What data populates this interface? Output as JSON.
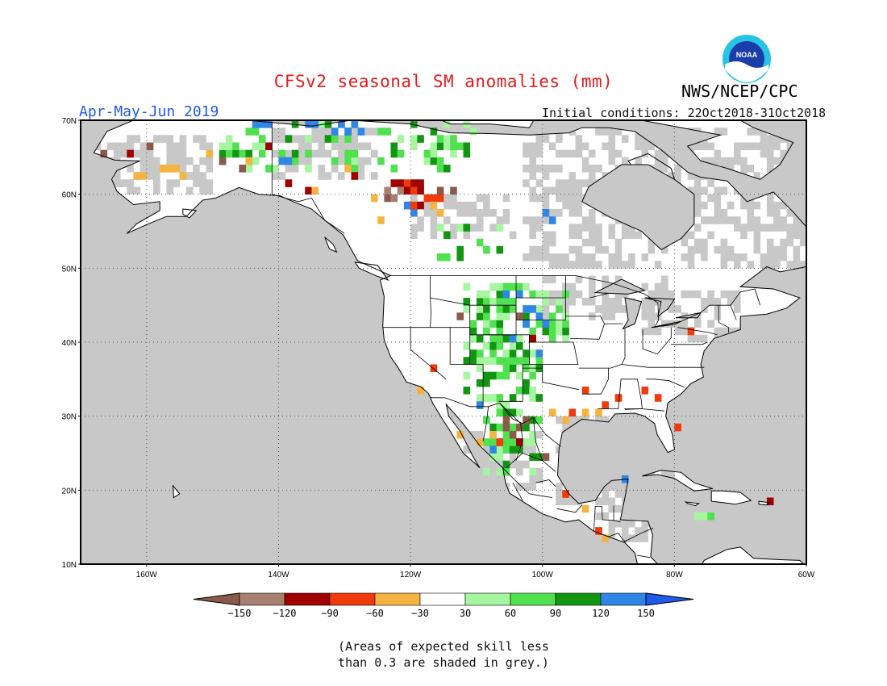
{
  "header": {
    "title": "CFSv2 seasonal SM anomalies (mm)",
    "agency": "NWS/NCEP/CPC",
    "logo_text": "NOAA",
    "period": "Apr-May-Jun 2019",
    "initial_conditions": "Initial conditions: 22Oct2018-31Oct2018"
  },
  "map": {
    "projection": "lat-lon",
    "lon_range": [
      -170,
      -60
    ],
    "lat_range": [
      10,
      70
    ],
    "grid": "dotted",
    "lat_ticks": [
      {
        "value": 70,
        "label": "70N"
      },
      {
        "value": 60,
        "label": "60N"
      },
      {
        "value": 50,
        "label": "50N"
      },
      {
        "value": 40,
        "label": "40N"
      },
      {
        "value": 30,
        "label": "30N"
      },
      {
        "value": 20,
        "label": "20N"
      },
      {
        "value": 10,
        "label": "10N"
      }
    ],
    "lon_ticks": [
      {
        "value": -160,
        "label": "160W"
      },
      {
        "value": -140,
        "label": "140W"
      },
      {
        "value": -120,
        "label": "120W"
      },
      {
        "value": -100,
        "label": "100W"
      },
      {
        "value": -80,
        "label": "80W"
      },
      {
        "value": -60,
        "label": "60W"
      }
    ],
    "colors": {
      "no_skill_grey": "#c8c8c8",
      "coast": "#000000",
      "grid": "#555555"
    }
  },
  "legend": {
    "bins": [
      {
        "color": "#8b5a4a"
      },
      {
        "color": "#a88070"
      },
      {
        "color": "#a00000"
      },
      {
        "color": "#f03a0a"
      },
      {
        "color": "#f5b441"
      },
      {
        "color": "#ffffff"
      },
      {
        "color": "#a6f5a0"
      },
      {
        "color": "#50e050"
      },
      {
        "color": "#129612"
      },
      {
        "color": "#2f86e6"
      },
      {
        "color": "#1f5ae8"
      }
    ],
    "labels": [
      "−150",
      "−120",
      "−90",
      "−60",
      "−30",
      "30",
      "60",
      "90",
      "120",
      "150"
    ]
  },
  "note": {
    "line1": "(Areas of expected skill less",
    "line2": "than 0.3 are shaded in grey.)"
  }
}
